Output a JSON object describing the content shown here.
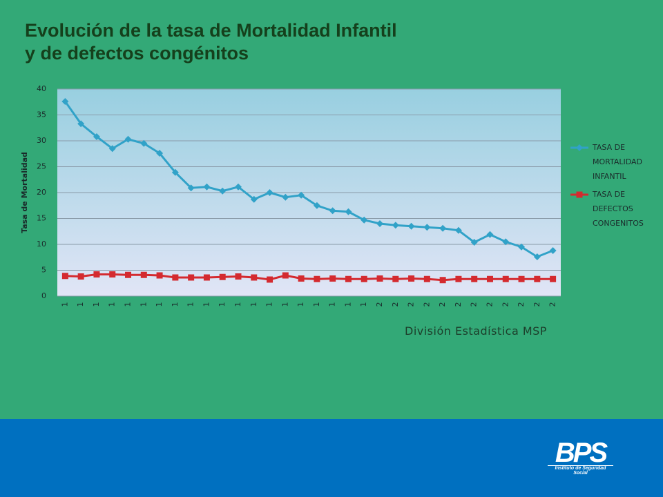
{
  "chart_data": {
    "type": "line",
    "title": "Evolución de la tasa de Mortalidad Infantil y de defectos congénitos",
    "y_label": "Tasa de Mortalidad",
    "categories": [
      "1",
      "1",
      "1",
      "1",
      "1",
      "1",
      "1",
      "1",
      "1",
      "1",
      "1",
      "1",
      "1",
      "1",
      "1",
      "1",
      "1",
      "1",
      "1",
      "1",
      "2",
      "2",
      "2",
      "2",
      "2",
      "2",
      "2",
      "2",
      "2",
      "2",
      "2",
      "2"
    ],
    "series": [
      {
        "name": "TASA DE MORTALIDAD INFANTIL",
        "color": "#31a2c8",
        "marker": "diamond",
        "values": [
          37.6,
          33.3,
          30.8,
          28.5,
          30.3,
          29.5,
          27.6,
          23.9,
          20.9,
          21.1,
          20.3,
          21.1,
          18.7,
          20.0,
          19.1,
          19.5,
          17.5,
          16.5,
          16.3,
          14.7,
          14.0,
          13.7,
          13.5,
          13.3,
          13.1,
          12.7,
          10.4,
          11.9,
          10.5,
          9.5,
          7.6,
          8.8
        ]
      },
      {
        "name": "TASA DE DEFECTOS CONGENITOS",
        "color": "#d42a2f",
        "marker": "square",
        "values": [
          3.9,
          3.8,
          4.2,
          4.2,
          4.1,
          4.1,
          4.0,
          3.6,
          3.6,
          3.6,
          3.7,
          3.8,
          3.6,
          3.2,
          4.0,
          3.4,
          3.3,
          3.4,
          3.3,
          3.3,
          3.4,
          3.3,
          3.4,
          3.3,
          3.1,
          3.3,
          3.3,
          3.3,
          3.3,
          3.3,
          3.3,
          3.3
        ]
      }
    ],
    "ylim": [
      0,
      40
    ],
    "yticks": [
      0,
      5,
      10,
      15,
      20,
      25,
      30,
      35,
      40
    ],
    "grid": true,
    "legend": "right"
  },
  "source": "División Estadística MSP",
  "logo": {
    "name": "BPS",
    "subtitle": "Instituto de Seguridad Social"
  }
}
